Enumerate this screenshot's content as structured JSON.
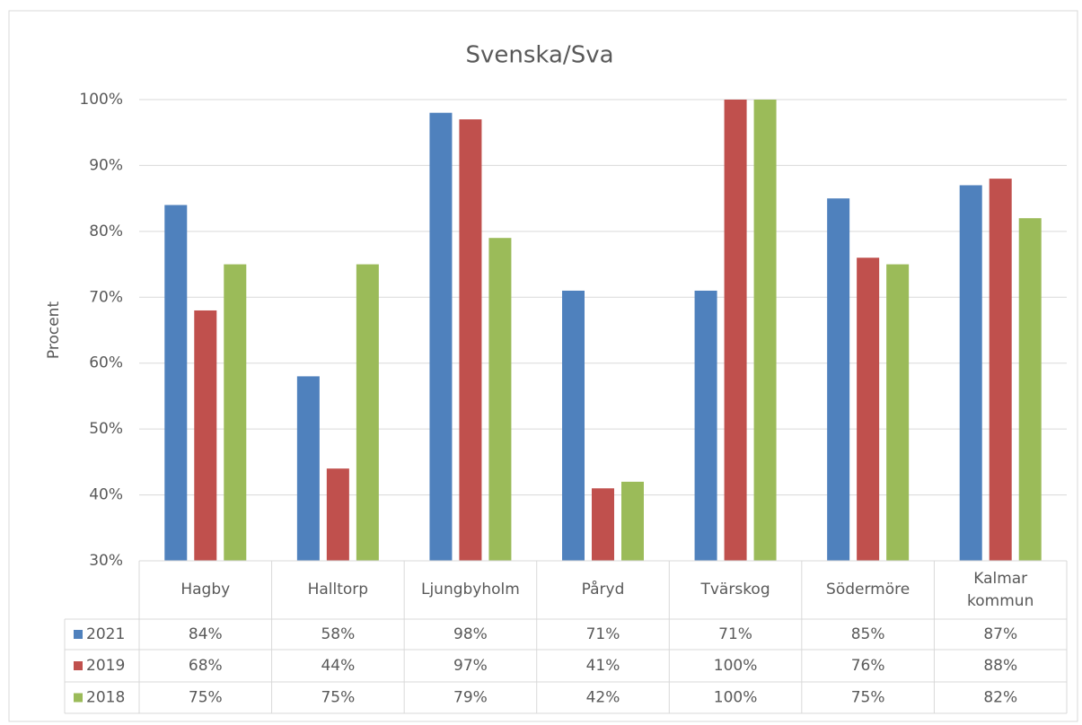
{
  "chart_data": {
    "type": "bar",
    "title": "Svenska/Sva",
    "y_label": "Procent",
    "categories": [
      "Hagby",
      "Halltorp",
      "Ljungbyholm",
      "Påryd",
      "Tvärskog",
      "Södermöre",
      "Kalmar kommun"
    ],
    "series": [
      {
        "name": "2021",
        "color": "#4f81bd",
        "values": [
          84,
          58,
          98,
          71,
          71,
          85,
          87
        ],
        "value_labels": [
          "84%",
          "58%",
          "98%",
          "71%",
          "71%",
          "85%",
          "87%"
        ]
      },
      {
        "name": "2019",
        "color": "#c0504d",
        "values": [
          68,
          44,
          97,
          41,
          100,
          76,
          88
        ],
        "value_labels": [
          "68%",
          "44%",
          "97%",
          "41%",
          "100%",
          "76%",
          "88%"
        ]
      },
      {
        "name": "2018",
        "color": "#9bbb59",
        "values": [
          75,
          75,
          79,
          42,
          100,
          75,
          82
        ],
        "value_labels": [
          "75%",
          "75%",
          "79%",
          "42%",
          "100%",
          "75%",
          "82%"
        ]
      }
    ],
    "ylim": [
      30,
      100
    ],
    "yticks": [
      {
        "value": 30,
        "label": "30%"
      },
      {
        "value": 40,
        "label": "40%"
      },
      {
        "value": 50,
        "label": "50%"
      },
      {
        "value": 60,
        "label": "60%"
      },
      {
        "value": 70,
        "label": "70%"
      },
      {
        "value": 80,
        "label": "80%"
      },
      {
        "value": 90,
        "label": "90%"
      },
      {
        "value": 100,
        "label": "100%"
      }
    ],
    "grid": true
  }
}
